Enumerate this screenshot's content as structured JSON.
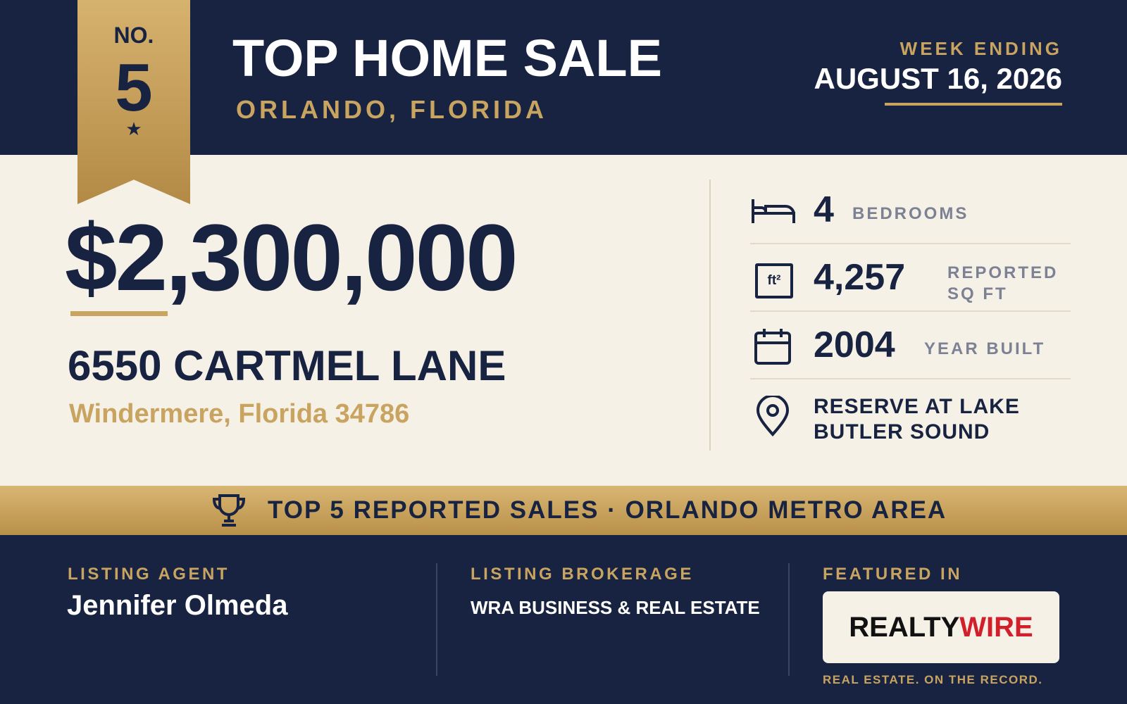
{
  "badge": {
    "prefix": "NO.",
    "rank": "5"
  },
  "header": {
    "title": "TOP HOME SALE",
    "subtitle": "ORLANDO, FLORIDA",
    "date_label": "WEEK ENDING",
    "date": "AUGUST 16, 2026"
  },
  "sale": {
    "price": "$2,300,000",
    "address": "6550 CARTMEL LANE",
    "city": "Windermere, Florida 34786"
  },
  "stats": [
    {
      "value": "4",
      "label": "BEDROOMS"
    },
    {
      "icon_text": "ft²",
      "value": "4,257",
      "label": "REPORTED SQ FT"
    },
    {
      "value": "2004",
      "label": "YEAR BUILT"
    },
    {
      "label": "RESERVE AT LAKE BUTLER SOUND"
    }
  ],
  "banner": "TOP 5 REPORTED SALES · ORLANDO METRO AREA",
  "footer": {
    "agent_label": "LISTING AGENT",
    "agent": "Jennifer Olmeda",
    "brokerage_label": "LISTING BROKERAGE",
    "brokerage": "WRA BUSINESS & REAL ESTATE",
    "featured_label": "FEATURED IN",
    "logo_part1": "REALTY",
    "logo_part2": "WIRE",
    "tagline": "REAL ESTATE. ON THE RECORD."
  }
}
